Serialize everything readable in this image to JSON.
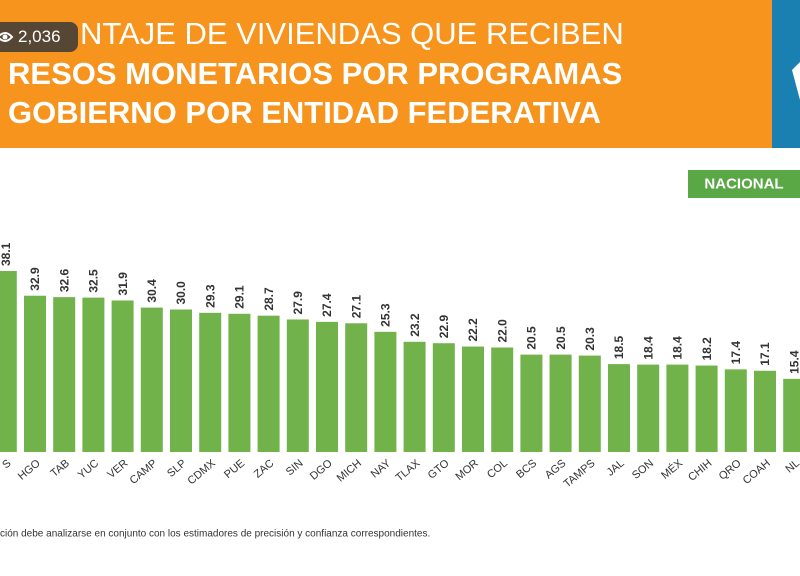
{
  "header": {
    "title_lines": [
      "NTAJE DE VIVIENDAS QUE RECIBEN",
      "RESOS MONETARIOS POR PROGRAMAS",
      "GOBIERNO POR ENTIDAD FEDERATIVA"
    ]
  },
  "overlay": {
    "views": "2,036"
  },
  "chart_data": {
    "type": "bar",
    "legend_label": "NACIONAL",
    "categories": [
      "S",
      "HGO",
      "TAB",
      "YUC",
      "VER",
      "CAMP",
      "SLP",
      "CDMX",
      "PUE",
      "ZAC",
      "SIN",
      "DGO",
      "MICH",
      "NAY",
      "TLAX",
      "GTO",
      "MOR",
      "COL",
      "BCS",
      "AGS",
      "TAMPS",
      "JAL",
      "SON",
      "MÉX",
      "CHIH",
      "QRO",
      "COAH",
      "NL"
    ],
    "values": [
      38.1,
      32.9,
      32.6,
      32.5,
      31.9,
      30.4,
      30.0,
      29.3,
      29.1,
      28.7,
      27.9,
      27.4,
      27.1,
      25.3,
      23.2,
      22.9,
      22.2,
      22.0,
      20.5,
      20.5,
      20.3,
      18.5,
      18.4,
      18.4,
      18.2,
      17.4,
      17.1,
      15.4
    ],
    "value_labels": [
      "38.1",
      "32.9",
      "32.6",
      "32.5",
      "31.9",
      "30.4",
      "30.0",
      "29.3",
      "29.1",
      "28.7",
      "27.9",
      "27.4",
      "27.1",
      "25.3",
      "23.2",
      "22.9",
      "22.2",
      "22.0",
      "20.5",
      "20.5",
      "20.3",
      "18.5",
      "18.4",
      "18.4",
      "18.2",
      "17.4",
      "17.1",
      "15.4"
    ],
    "color": "#71b34a",
    "note": "ción debe analizarse en conjunto con los estimadores de precisión y confianza correspondientes."
  }
}
